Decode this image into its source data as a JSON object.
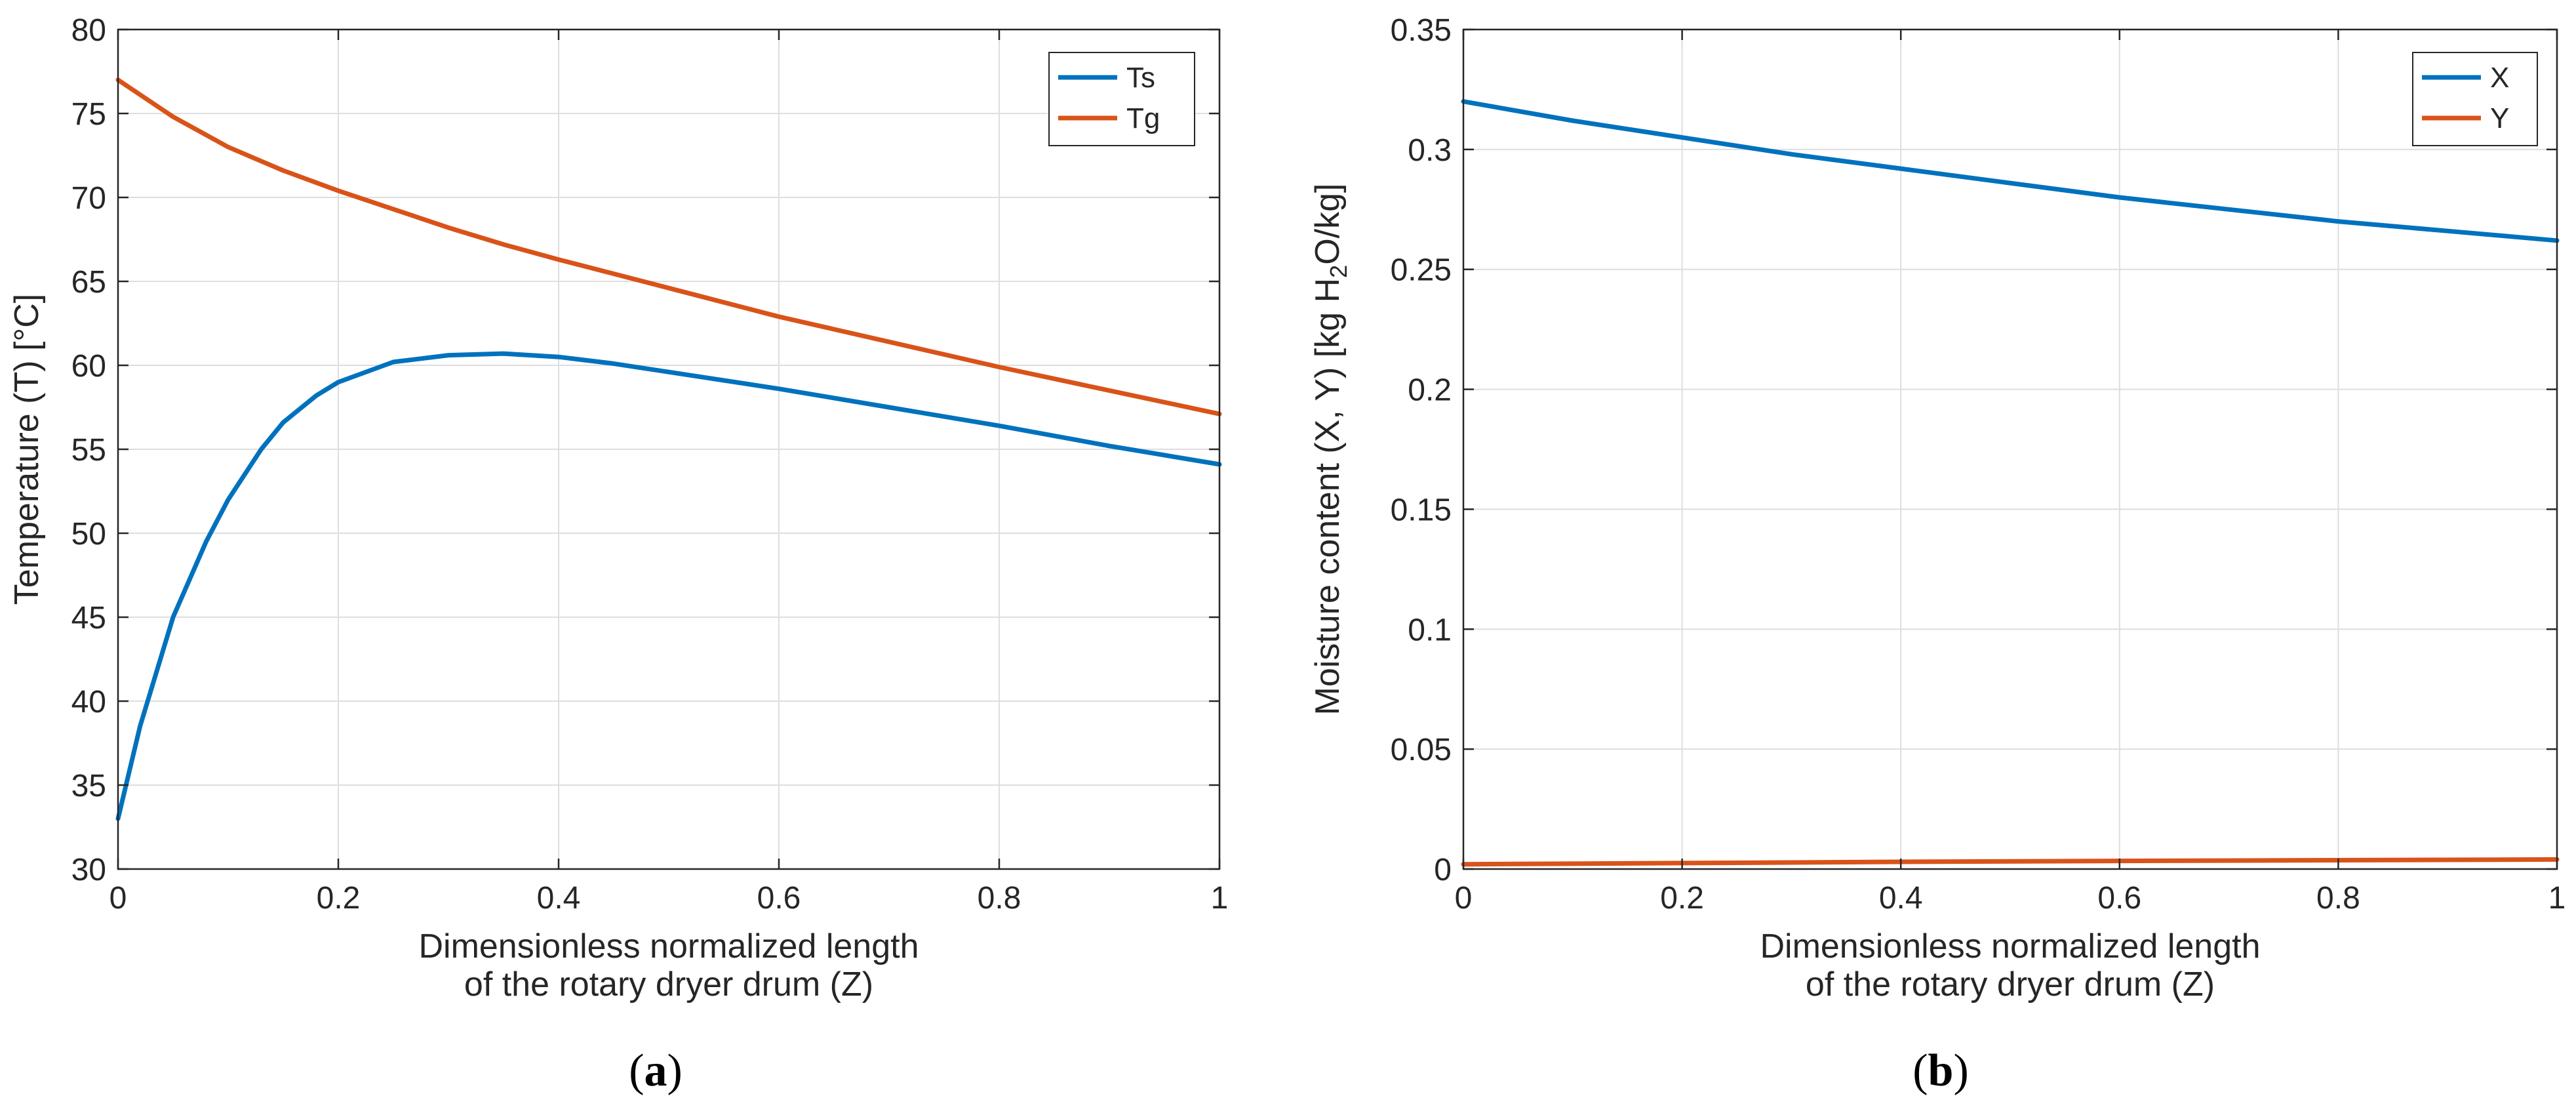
{
  "chart_data": [
    {
      "type": "line",
      "caption_letter": "a",
      "xlabel_lines": [
        "Dimensionless normalized length",
        "of the rotary dryer drum (Z)"
      ],
      "ylabel": "Temperature (T) [°C]",
      "xlim": [
        0,
        1
      ],
      "ylim": [
        30,
        80
      ],
      "xticks": [
        0,
        0.2,
        0.4,
        0.6,
        0.8,
        1
      ],
      "xtick_labels": [
        "0",
        "0.2",
        "0.4",
        "0.6",
        "0.8",
        "1"
      ],
      "yticks": [
        30,
        35,
        40,
        45,
        50,
        55,
        60,
        65,
        70,
        75,
        80
      ],
      "ytick_labels": [
        "30",
        "35",
        "40",
        "45",
        "50",
        "55",
        "60",
        "65",
        "70",
        "75",
        "80"
      ],
      "grid": true,
      "legend_position": "top-right",
      "series": [
        {
          "name": "Ts",
          "color": "#0072BD",
          "x": [
            0,
            0.02,
            0.05,
            0.08,
            0.1,
            0.13,
            0.15,
            0.18,
            0.2,
            0.25,
            0.3,
            0.35,
            0.4,
            0.45,
            0.5,
            0.6,
            0.7,
            0.8,
            0.9,
            1.0
          ],
          "y": [
            33,
            38.5,
            45,
            49.5,
            52,
            55,
            56.6,
            58.2,
            59,
            60.2,
            60.6,
            60.7,
            60.5,
            60.1,
            59.6,
            58.6,
            57.5,
            56.4,
            55.2,
            54.1
          ]
        },
        {
          "name": "Tg",
          "color": "#D95319",
          "x": [
            0,
            0.05,
            0.1,
            0.15,
            0.2,
            0.25,
            0.3,
            0.35,
            0.4,
            0.5,
            0.6,
            0.7,
            0.8,
            0.9,
            1.0
          ],
          "y": [
            77,
            74.8,
            73,
            71.6,
            70.4,
            69.3,
            68.2,
            67.2,
            66.3,
            64.6,
            62.9,
            61.4,
            59.9,
            58.5,
            57.1
          ]
        }
      ]
    },
    {
      "type": "line",
      "caption_letter": "b",
      "xlabel_lines": [
        "Dimensionless normalized length",
        "of the rotary dryer drum (Z)"
      ],
      "ylabel": "Moisture  content  (X,  Y)  [kg  H",
      "ylabel_subscript": "2",
      "ylabel_suffix": "O/kg]",
      "xlim": [
        0,
        1
      ],
      "ylim": [
        0,
        0.35
      ],
      "xticks": [
        0,
        0.2,
        0.4,
        0.6,
        0.8,
        1
      ],
      "xtick_labels": [
        "0",
        "0.2",
        "0.4",
        "0.6",
        "0.8",
        "1"
      ],
      "yticks": [
        0,
        0.05,
        0.1,
        0.15,
        0.2,
        0.25,
        0.3,
        0.35
      ],
      "ytick_labels": [
        "0",
        "0.05",
        "0.1",
        "0.15",
        "0.2",
        "0.25",
        "0.3",
        "0.35"
      ],
      "grid": true,
      "legend_position": "top-right",
      "series": [
        {
          "name": "X",
          "color": "#0072BD",
          "x": [
            0,
            0.1,
            0.2,
            0.3,
            0.4,
            0.5,
            0.6,
            0.7,
            0.8,
            0.9,
            1.0
          ],
          "y": [
            0.32,
            0.312,
            0.305,
            0.298,
            0.292,
            0.286,
            0.28,
            0.275,
            0.27,
            0.266,
            0.262
          ]
        },
        {
          "name": "Y",
          "color": "#D95319",
          "x": [
            0,
            0.2,
            0.4,
            0.6,
            0.8,
            1.0
          ],
          "y": [
            0.002,
            0.0025,
            0.003,
            0.0034,
            0.0037,
            0.004
          ]
        }
      ]
    }
  ]
}
